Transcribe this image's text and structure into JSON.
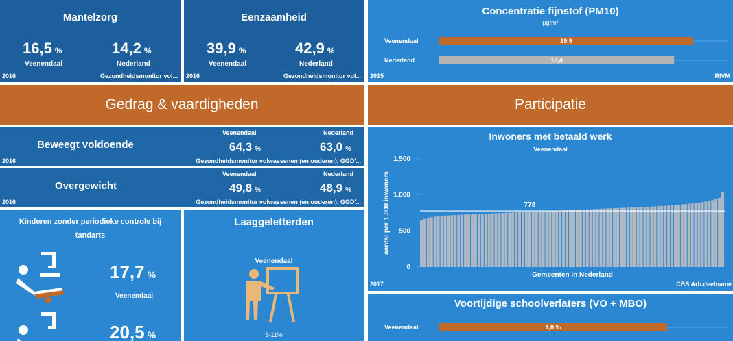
{
  "mantelzorg": {
    "title": "Mantelzorg",
    "left": {
      "value": "16,5",
      "unit": "%",
      "label": "Veenendaal"
    },
    "right": {
      "value": "14,2",
      "unit": "%",
      "label": "Nederland"
    },
    "year": "2016",
    "source": "Gezondheidsmonitor vol..."
  },
  "eenzaamheid": {
    "title": "Eenzaamheid",
    "left": {
      "value": "39,9",
      "unit": "%",
      "label": "Veenendaal"
    },
    "right": {
      "value": "42,9",
      "unit": "%",
      "label": "Nederland"
    },
    "year": "2016",
    "source": "Gezondheidsmonitor vol..."
  },
  "fijnstof": {
    "type": "bar",
    "title": "Concentratie fijnstof (PM10)",
    "unit": "µg/m³",
    "bars": [
      {
        "label": "Veenendaal",
        "value": 19.9,
        "value_label": "19,9",
        "color": "#c0692a"
      },
      {
        "label": "Nederland",
        "value": 18.4,
        "value_label": "18,4",
        "color": "#b4b4b4"
      }
    ],
    "year": "2015",
    "source": "RIVM"
  },
  "sections": [
    "Gedrag & vaardigheden",
    "Participatie"
  ],
  "beweegt": {
    "title": "Beweegt voldoende",
    "left": {
      "label": "Veenendaal",
      "value": "64,3",
      "unit": "%"
    },
    "right": {
      "label": "Nederland",
      "value": "63,0",
      "unit": "%"
    },
    "year": "2016",
    "source": "Gezondheidsmonitor volwassenen (en ouderen), GGD'..."
  },
  "overgewicht": {
    "title": "Overgewicht",
    "left": {
      "label": "Veenendaal",
      "value": "49,8",
      "unit": "%"
    },
    "right": {
      "label": "Nederland",
      "value": "48,9",
      "unit": "%"
    },
    "year": "2016",
    "source": "Gezondheidsmonitor volwassenen (en ouderen), GGD'..."
  },
  "tandarts": {
    "title": "Kinderen zonder periodieke controle bij tandarts",
    "items": [
      {
        "value": "17,7",
        "unit": "%",
        "label": "Veenendaal"
      },
      {
        "value": "20,5",
        "unit": "%"
      }
    ]
  },
  "laaggeletterden": {
    "title": "Laaggeletterden",
    "label": "Veenendaal",
    "value": "8-11%"
  },
  "werk": {
    "type": "bar",
    "title": "Inwoners met betaald werk",
    "subtitle": "Veenendaal",
    "y_label": "aantal per 1.000 inwoners",
    "x_label": "Gemeenten in Nederland",
    "ylim": [
      0,
      1500
    ],
    "yticks": [
      0,
      500,
      {
        "value": 1000,
        "label": "1.000"
      },
      {
        "value": 1500,
        "label": "1.500"
      }
    ],
    "reference": 778,
    "color": "#b0b8c4",
    "values": [
      645,
      668,
      680,
      690,
      698,
      704,
      709,
      713,
      716,
      719,
      722,
      724,
      726,
      728,
      730,
      732,
      734,
      736,
      738,
      740,
      742,
      744,
      746,
      748,
      750,
      752,
      754,
      756,
      758,
      760,
      762,
      764,
      766,
      768,
      770,
      772,
      774,
      776,
      778,
      780,
      782,
      784,
      786,
      788,
      790,
      792,
      794,
      796,
      798,
      800,
      802,
      804,
      806,
      808,
      810,
      812,
      814,
      816,
      818,
      820,
      822,
      824,
      826,
      828,
      830,
      832,
      834,
      836,
      838,
      840,
      843,
      846,
      849,
      852,
      856,
      860,
      864,
      868,
      872,
      876,
      881,
      887,
      893,
      900,
      908,
      917,
      928,
      942,
      960,
      1045
    ],
    "year": "2017",
    "source": "CBS Arb.deelname"
  },
  "schoolverlaters": {
    "type": "bar",
    "title": "Voortijdige schoolverlaters (VO + MBO)",
    "bars": [
      {
        "label": "Veenendaal",
        "value": 1.8,
        "value_label": "1,8 %",
        "color": "#c0692a"
      }
    ]
  }
}
